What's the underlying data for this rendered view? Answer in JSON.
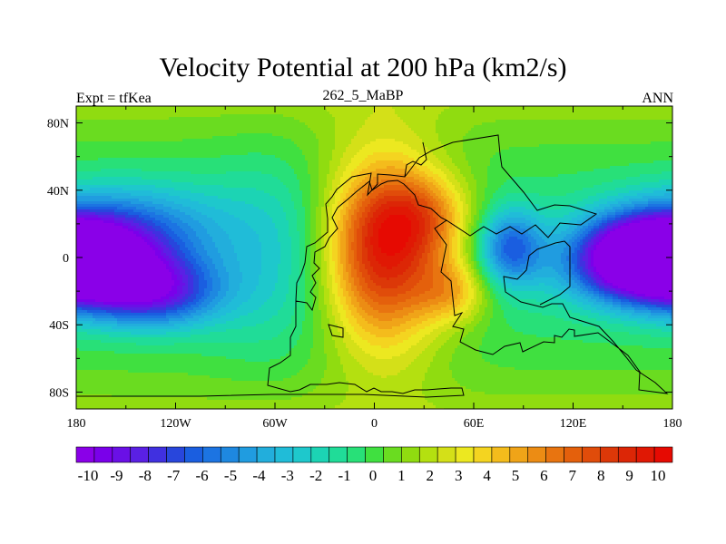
{
  "chart_data": {
    "type": "heatmap",
    "title": "Velocity Potential at 200 hPa (km2/s)",
    "left_label": "Expt = tfKea",
    "center_label": "262_5_MaBP",
    "right_label": "ANN",
    "x_ticks": [
      "180",
      "120W",
      "60W",
      "0",
      "60E",
      "120E",
      "180"
    ],
    "x_tick_values": [
      -180,
      -120,
      -60,
      0,
      60,
      120,
      180
    ],
    "y_ticks": [
      "80N",
      "40N",
      "0",
      "40S",
      "80S"
    ],
    "y_tick_values": [
      80,
      40,
      0,
      -40,
      -80
    ],
    "xlim": [
      -180,
      180
    ],
    "ylim": [
      -90,
      90
    ],
    "colorbar_labels": [
      "-10",
      "-9",
      "-8",
      "-7",
      "-6",
      "-5",
      "-4",
      "-3",
      "-2",
      "-1",
      "0",
      "1",
      "2",
      "3",
      "4",
      "5",
      "6",
      "7",
      "8",
      "9",
      "10"
    ],
    "colorbar_min": -11,
    "colorbar_max": 11,
    "colorbar_colors": [
      "#8a00e8",
      "#7a00ea",
      "#6a10e6",
      "#5a20e4",
      "#4030e0",
      "#2846dc",
      "#1a5ee0",
      "#1c74e2",
      "#1e88e0",
      "#209ce0",
      "#22aedc",
      "#20bcd8",
      "#1ec8cc",
      "#1cd4b4",
      "#20dc98",
      "#28e078",
      "#40e040",
      "#6adc20",
      "#90dc10",
      "#b4e010",
      "#d4e018",
      "#ece820",
      "#f4d420",
      "#f4bc1c",
      "#f0a418",
      "#ec8c14",
      "#e87410",
      "#e4600c",
      "#e04c0a",
      "#dc3808",
      "#dc2606",
      "#e01804",
      "#e60a02"
    ],
    "field_extrema": [
      {
        "name": "main_max",
        "lon": 0,
        "lat": 5,
        "value": 10.3
      },
      {
        "name": "secondary_max",
        "lon": 28,
        "lat": 22,
        "value": 9.6
      },
      {
        "name": "western_min",
        "lon": -180,
        "lat": -8,
        "value": -10
      },
      {
        "name": "eastern_min",
        "lon": 165,
        "lat": 5,
        "value": -10
      }
    ]
  }
}
